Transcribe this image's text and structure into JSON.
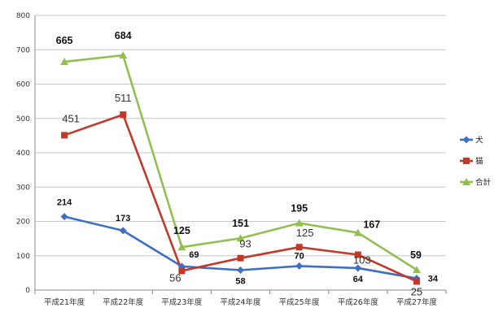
{
  "chart_data": {
    "type": "line",
    "categories": [
      "平成21年度",
      "平成22年度",
      "平成23年度",
      "平成24年度",
      "平成25年度",
      "平成26年度",
      "平成27年度"
    ],
    "ylim": [
      0,
      800
    ],
    "yticks": [
      0,
      100,
      200,
      300,
      400,
      500,
      600,
      700,
      800
    ],
    "grid": true,
    "legend_position": "right",
    "series": [
      {
        "name": "犬",
        "color": "#3f6fc4",
        "marker": "diamond",
        "values": [
          214,
          173,
          69,
          58,
          70,
          64,
          34
        ],
        "labels": [
          "214",
          "173",
          "69",
          "58",
          "70",
          "64",
          "34"
        ]
      },
      {
        "name": "猫",
        "color": "#c0392b",
        "marker": "square",
        "values": [
          451,
          511,
          56,
          93,
          125,
          103,
          25
        ],
        "labels": [
          "451",
          "511",
          "56",
          "93",
          "125",
          "103",
          "25"
        ]
      },
      {
        "name": "合計",
        "color": "#92c050",
        "marker": "triangle",
        "values": [
          665,
          684,
          125,
          151,
          195,
          167,
          59
        ],
        "labels": [
          "665",
          "684",
          "125",
          "151",
          "195",
          "167",
          "59"
        ]
      }
    ]
  }
}
